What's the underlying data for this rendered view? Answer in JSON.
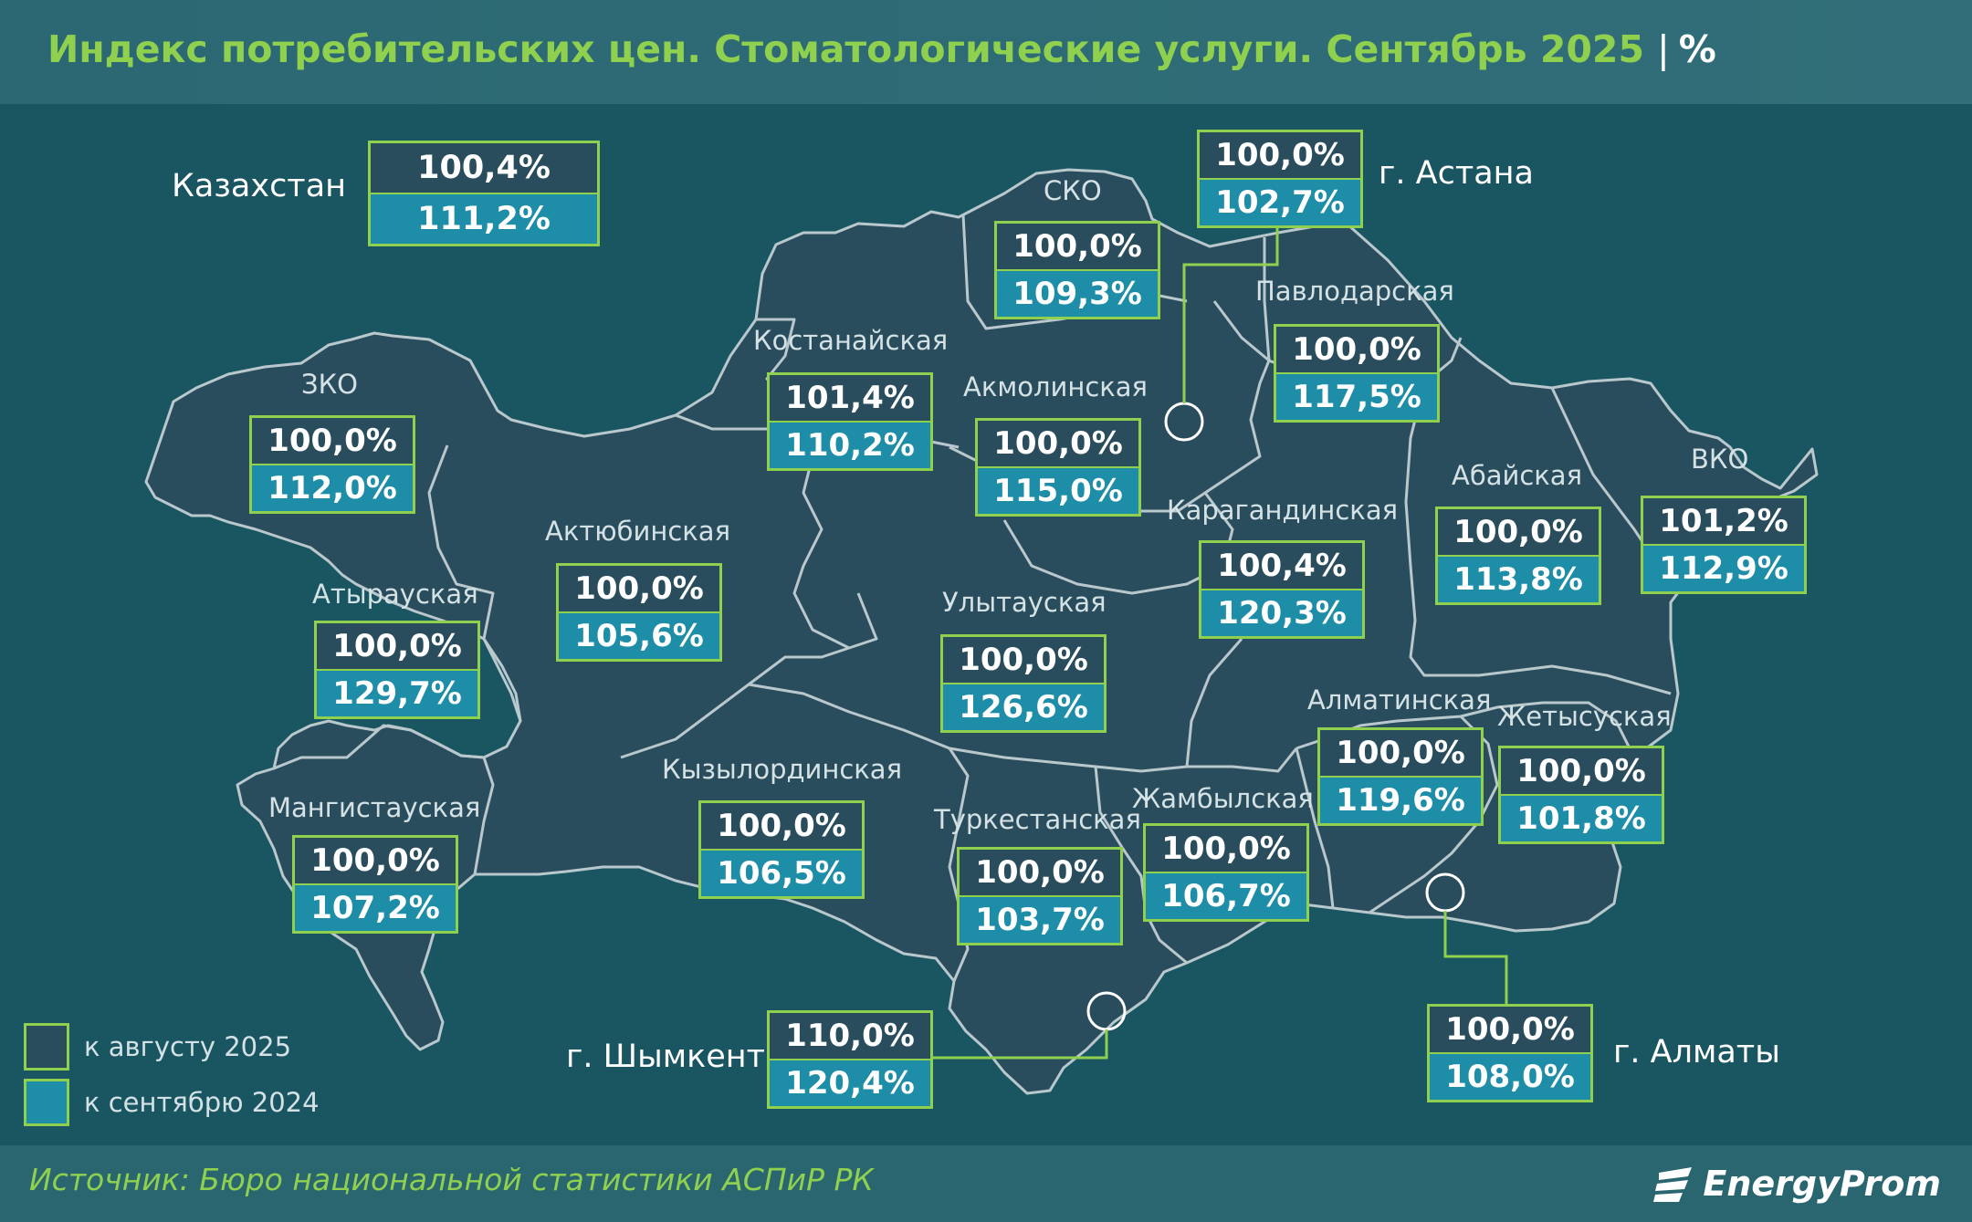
{
  "header": {
    "title": "Индекс потребительских цен. Стоматологические услуги. Сентябрь 2025",
    "separator": "|",
    "unit": "%"
  },
  "colors": {
    "accent": "#8fd14f",
    "box_top": "#2a4d5d",
    "box_bottom": "#1e8da8",
    "background": "#1a5562"
  },
  "kazakhstan": {
    "label": "Казахстан",
    "to_august": "100,4%",
    "to_september": "111,2%"
  },
  "regions": [
    {
      "id": "sko",
      "label": "СКО",
      "to_august": "100,0%",
      "to_september": "109,3%"
    },
    {
      "id": "astana",
      "label": "г. Астана",
      "to_august": "100,0%",
      "to_september": "102,7%"
    },
    {
      "id": "pavlodar",
      "label": "Павлодарская",
      "to_august": "100,0%",
      "to_september": "117,5%"
    },
    {
      "id": "kostanay",
      "label": "Костанайская",
      "to_august": "101,4%",
      "to_september": "110,2%"
    },
    {
      "id": "akmola",
      "label": "Акмолинская",
      "to_august": "100,0%",
      "to_september": "115,0%"
    },
    {
      "id": "zko",
      "label": "ЗКО",
      "to_august": "100,0%",
      "to_september": "112,0%"
    },
    {
      "id": "aktobe",
      "label": "Актюбинская",
      "to_august": "100,0%",
      "to_september": "105,6%"
    },
    {
      "id": "atyrau",
      "label": "Атырауская",
      "to_august": "100,0%",
      "to_september": "129,7%"
    },
    {
      "id": "karaganda",
      "label": "Карагандинская",
      "to_august": "100,4%",
      "to_september": "120,3%"
    },
    {
      "id": "abai",
      "label": "Абайская",
      "to_august": "100,0%",
      "to_september": "113,8%"
    },
    {
      "id": "vko",
      "label": "ВКО",
      "to_august": "101,2%",
      "to_september": "112,9%"
    },
    {
      "id": "ulytau",
      "label": "Улытауская",
      "to_august": "100,0%",
      "to_september": "126,6%"
    },
    {
      "id": "almaty_reg",
      "label": "Алматинская",
      "to_august": "100,0%",
      "to_september": "119,6%"
    },
    {
      "id": "zhetysu",
      "label": "Жетысуская",
      "to_august": "100,0%",
      "to_september": "101,8%"
    },
    {
      "id": "mangystau",
      "label": "Мангистауская",
      "to_august": "100,0%",
      "to_september": "107,2%"
    },
    {
      "id": "kyzylorda",
      "label": "Кызылординская",
      "to_august": "100,0%",
      "to_september": "106,5%"
    },
    {
      "id": "turkestan",
      "label": "Туркестанская",
      "to_august": "100,0%",
      "to_september": "103,7%"
    },
    {
      "id": "zhambyl",
      "label": "Жамбылская",
      "to_august": "100,0%",
      "to_september": "106,7%"
    },
    {
      "id": "shymkent",
      "label": "г. Шымкент",
      "to_august": "110,0%",
      "to_september": "120,4%"
    },
    {
      "id": "almaty_city",
      "label": "г. Алматы",
      "to_august": "100,0%",
      "to_september": "108,0%"
    }
  ],
  "legend": {
    "to_august": "к августу 2025",
    "to_september": "к сентябрю 2024"
  },
  "footer": {
    "source": "Источник: Бюро национальной статистики АСПиР РК",
    "logo": "EnergyProm"
  }
}
